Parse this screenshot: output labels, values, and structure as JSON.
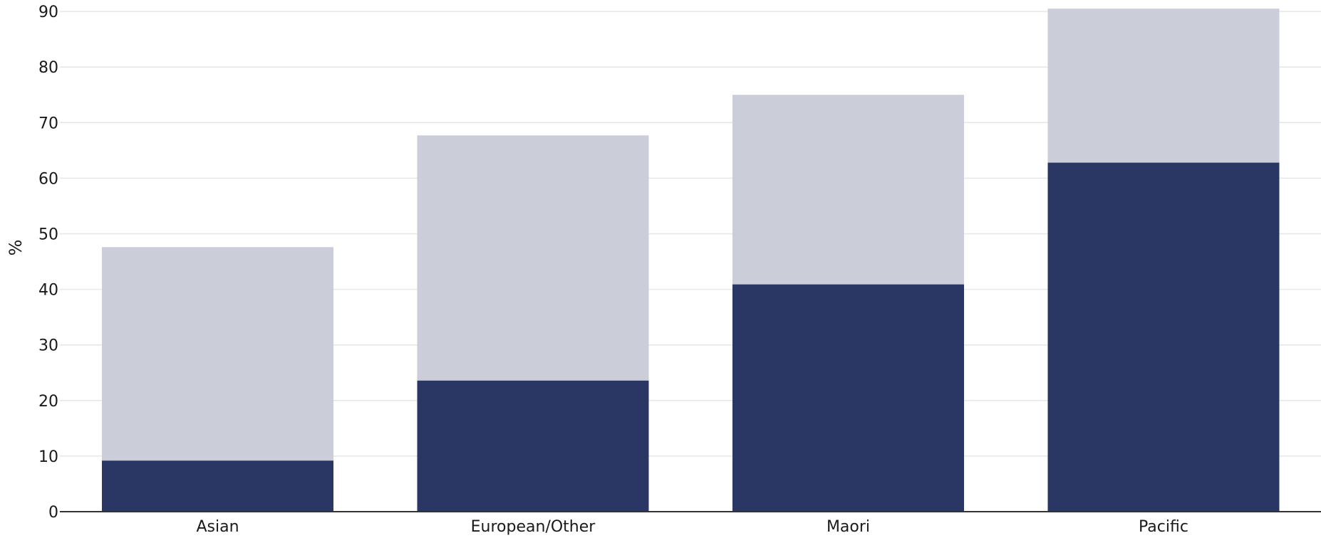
{
  "chart_data": {
    "type": "bar",
    "stacked": true,
    "title": "",
    "xlabel": "",
    "ylabel": "%",
    "ylim": [
      0,
      90
    ],
    "yticks": [
      0,
      10,
      20,
      30,
      40,
      50,
      60,
      70,
      80,
      90
    ],
    "grid": true,
    "legend": "none",
    "categories": [
      "Asian",
      "European/Other",
      "Maori",
      "Pacific"
    ],
    "series": [
      {
        "values": [
          9.2,
          23.6,
          40.9,
          62.8
        ],
        "color": "#2a3764"
      },
      {
        "values": [
          38.4,
          44.1,
          34.1,
          27.7
        ],
        "color": "#cbcdd9"
      }
    ],
    "colors": {
      "gridline": "#e6e6e6",
      "axis": "#333333"
    }
  }
}
